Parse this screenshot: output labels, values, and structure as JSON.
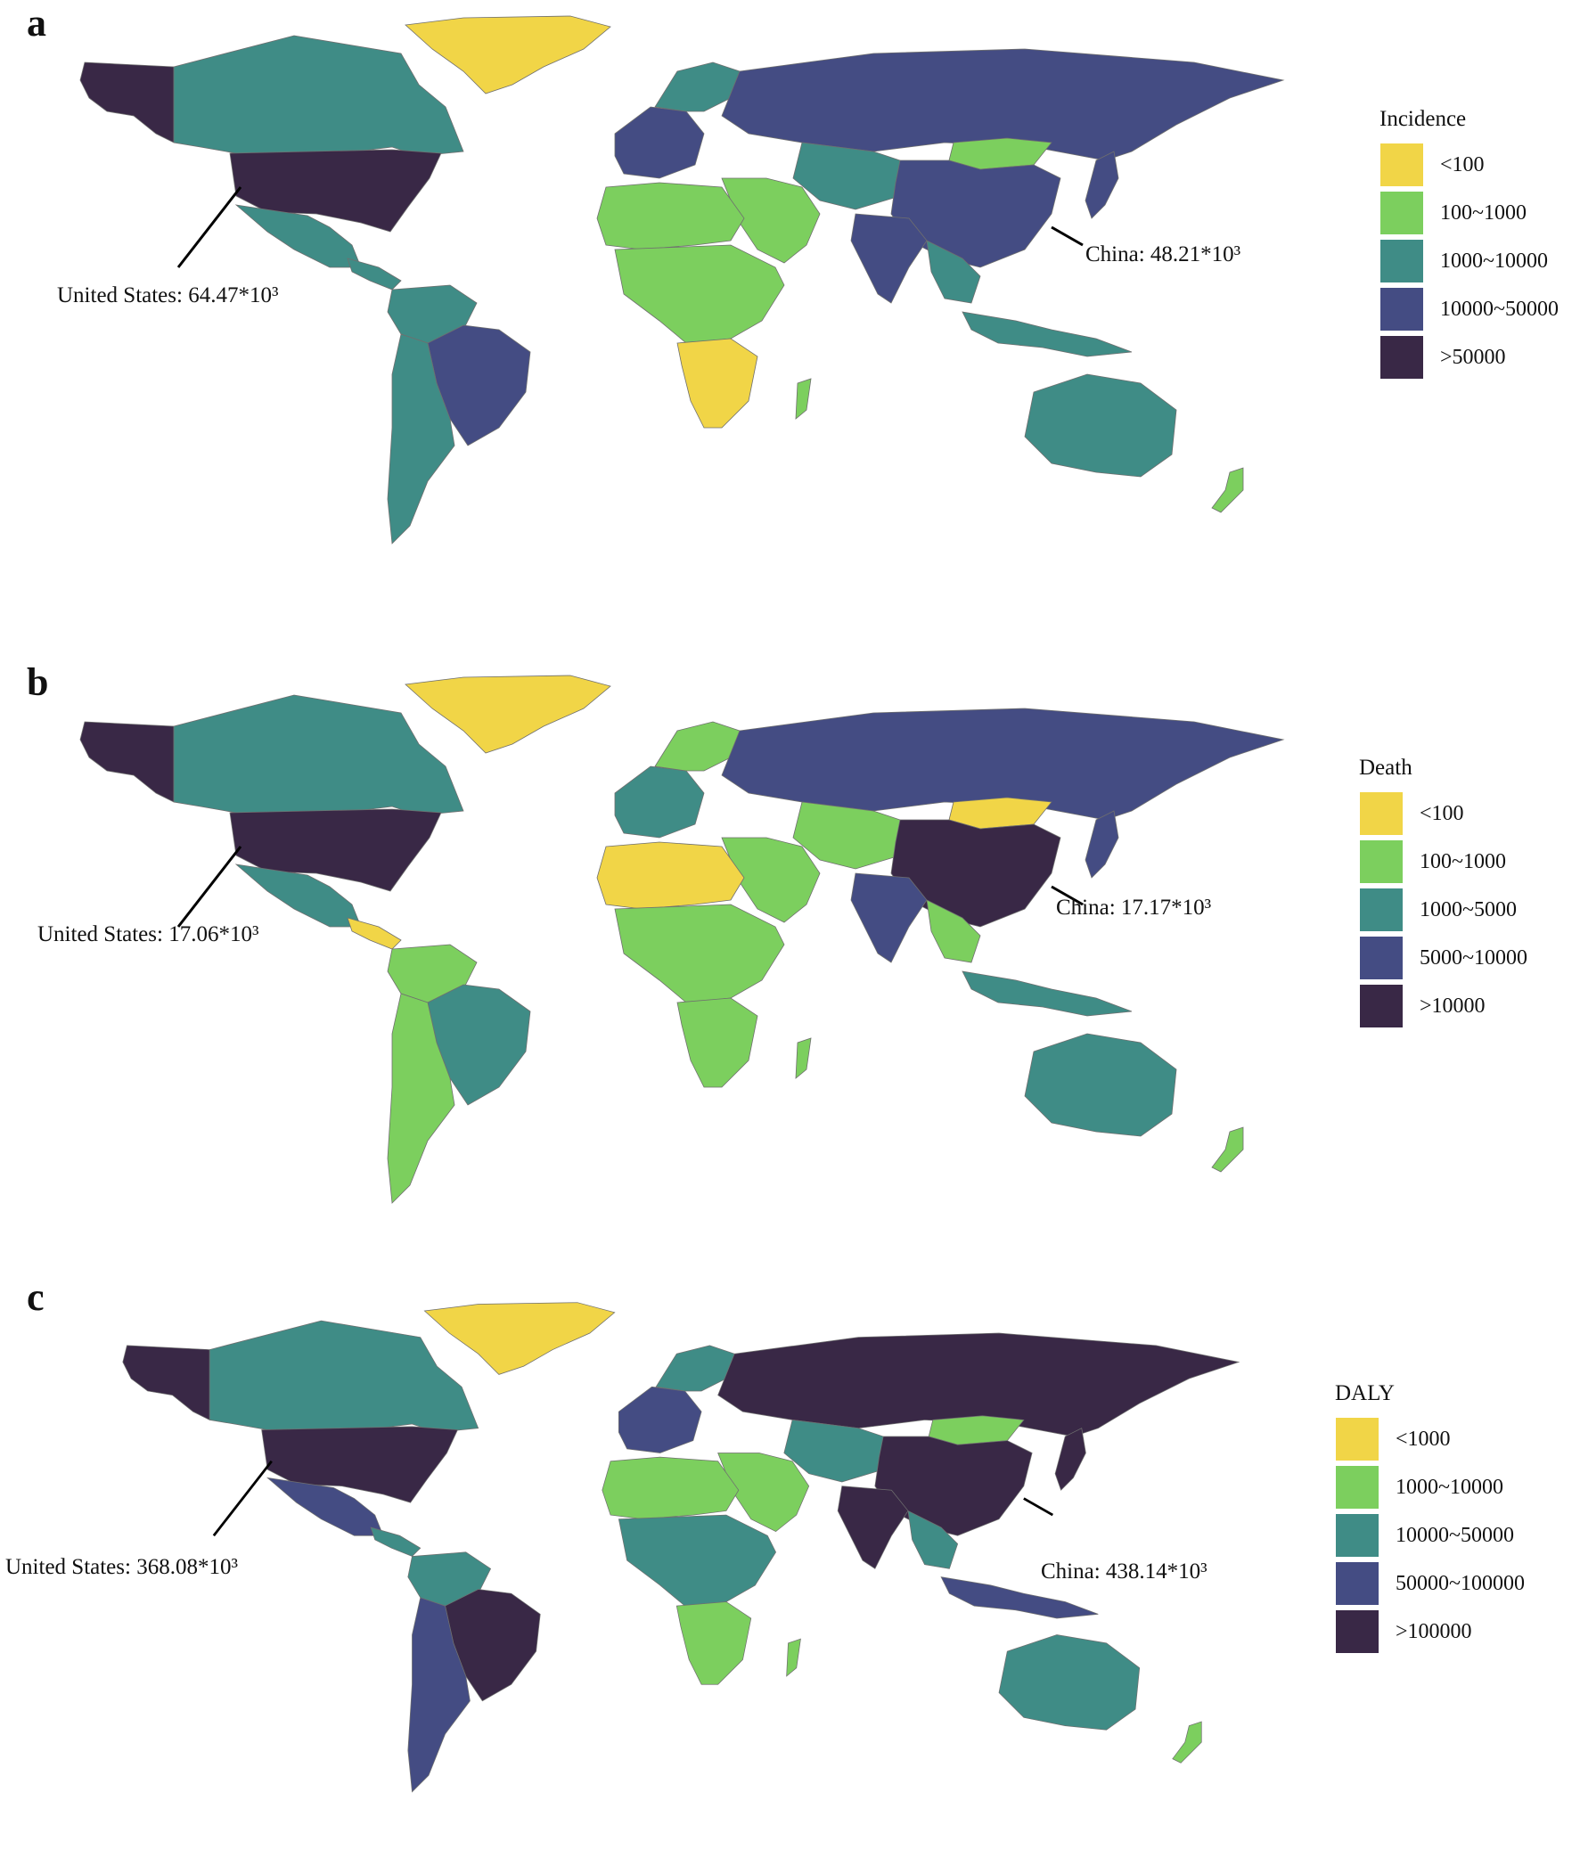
{
  "panels": [
    {
      "letter": "a",
      "legend_title": "Incidence",
      "legend": [
        {
          "label": "<100",
          "color": "#f1d547"
        },
        {
          "label": "100~1000",
          "color": "#7ccf5e"
        },
        {
          "label": "1000~10000",
          "color": "#3f8c86"
        },
        {
          "label": "10000~50000",
          "color": "#444c83"
        },
        {
          "label": ">50000",
          "color": "#392846"
        }
      ],
      "callout_us": "United States: 64.47*10³",
      "callout_china": "China: 48.21*10³",
      "regions": {
        "greenland": "#f1d547",
        "alaska": "#392846",
        "canada": "#3f8c86",
        "usa": "#392846",
        "mexico": "#3f8c86",
        "central_america": "#3f8c86",
        "northern_south_america": "#3f8c86",
        "brazil": "#444c83",
        "southern_cone": "#3f8c86",
        "west_europe": "#444c83",
        "scandinavia": "#3f8c86",
        "russia": "#444c83",
        "central_asia": "#3f8c86",
        "mongolia": "#7ccf5e",
        "china": "#444c83",
        "india": "#444c83",
        "southeast_asia": "#3f8c86",
        "japan": "#444c83",
        "middle_east": "#7ccf5e",
        "north_africa": "#7ccf5e",
        "central_africa": "#7ccf5e",
        "southern_africa": "#f1d547",
        "madagascar": "#7ccf5e",
        "indonesia": "#3f8c86",
        "australia": "#3f8c86",
        "new_zealand": "#7ccf5e"
      }
    },
    {
      "letter": "b",
      "legend_title": "Death",
      "legend": [
        {
          "label": "<100",
          "color": "#f1d547"
        },
        {
          "label": "100~1000",
          "color": "#7ccf5e"
        },
        {
          "label": "1000~5000",
          "color": "#3f8c86"
        },
        {
          "label": "5000~10000",
          "color": "#444c83"
        },
        {
          "label": ">10000",
          "color": "#392846"
        }
      ],
      "callout_us": "United States: 17.06*10³",
      "callout_china": "China: 17.17*10³",
      "regions": {
        "greenland": "#f1d547",
        "alaska": "#392846",
        "canada": "#3f8c86",
        "usa": "#392846",
        "mexico": "#3f8c86",
        "central_america": "#f1d547",
        "northern_south_america": "#7ccf5e",
        "brazil": "#3f8c86",
        "southern_cone": "#7ccf5e",
        "west_europe": "#3f8c86",
        "scandinavia": "#7ccf5e",
        "russia": "#444c83",
        "central_asia": "#7ccf5e",
        "mongolia": "#f1d547",
        "china": "#392846",
        "india": "#444c83",
        "southeast_asia": "#7ccf5e",
        "japan": "#444c83",
        "middle_east": "#7ccf5e",
        "north_africa": "#f1d547",
        "central_africa": "#7ccf5e",
        "southern_africa": "#7ccf5e",
        "madagascar": "#7ccf5e",
        "indonesia": "#3f8c86",
        "australia": "#3f8c86",
        "new_zealand": "#7ccf5e"
      }
    },
    {
      "letter": "c",
      "legend_title": "DALY",
      "legend": [
        {
          "label": "<1000",
          "color": "#f1d547"
        },
        {
          "label": "1000~10000",
          "color": "#7ccf5e"
        },
        {
          "label": "10000~50000",
          "color": "#3f8c86"
        },
        {
          "label": "50000~100000",
          "color": "#444c83"
        },
        {
          "label": ">100000",
          "color": "#392846"
        }
      ],
      "callout_us": "United States: 368.08*10³",
      "callout_china": "China: 438.14*10³",
      "regions": {
        "greenland": "#f1d547",
        "alaska": "#392846",
        "canada": "#3f8c86",
        "usa": "#392846",
        "mexico": "#444c83",
        "central_america": "#3f8c86",
        "northern_south_america": "#3f8c86",
        "brazil": "#392846",
        "southern_cone": "#444c83",
        "west_europe": "#444c83",
        "scandinavia": "#3f8c86",
        "russia": "#392846",
        "central_asia": "#3f8c86",
        "mongolia": "#7ccf5e",
        "china": "#392846",
        "india": "#392846",
        "southeast_asia": "#3f8c86",
        "japan": "#392846",
        "middle_east": "#7ccf5e",
        "north_africa": "#7ccf5e",
        "central_africa": "#3f8c86",
        "southern_africa": "#7ccf5e",
        "madagascar": "#7ccf5e",
        "indonesia": "#444c83",
        "australia": "#3f8c86",
        "new_zealand": "#7ccf5e"
      }
    }
  ]
}
